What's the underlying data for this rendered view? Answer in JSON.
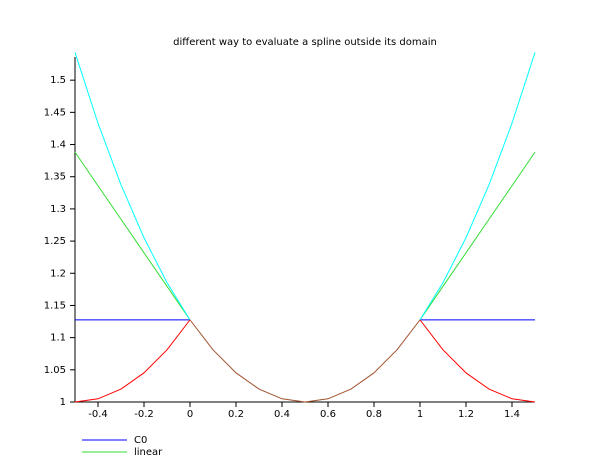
{
  "chart_data": {
    "type": "line",
    "title": "different way to evaluate a spline outside its domain",
    "x": [
      -0.5,
      -0.4,
      -0.3,
      -0.2,
      -0.1,
      0,
      0.1,
      0.2,
      0.3,
      0.4,
      0.5,
      0.6,
      0.7,
      0.8,
      0.9,
      1,
      1.1,
      1.2,
      1.3,
      1.4,
      1.5
    ],
    "xlim": [
      -0.5,
      1.5
    ],
    "xticks": [
      -0.4,
      -0.2,
      0,
      0.2,
      0.4,
      0.6,
      0.8,
      1,
      1.2,
      1.4
    ],
    "ylim": [
      1,
      1.536
    ],
    "yticks": [
      1,
      1.05,
      1.1,
      1.15,
      1.2,
      1.25,
      1.3,
      1.35,
      1.4,
      1.45,
      1.5
    ],
    "series": [
      {
        "name": "C0",
        "color": "#0000ff",
        "values": [
          1.1276,
          1.1276,
          1.1276,
          1.1276,
          1.1276,
          1.1276,
          null,
          null,
          null,
          null,
          null,
          null,
          null,
          null,
          null,
          1.1276,
          1.1276,
          1.1276,
          1.1276,
          1.1276,
          1.1276
        ]
      },
      {
        "name": "linear",
        "color": "#33dd33",
        "values": [
          1.3882,
          1.336,
          1.2839,
          1.2318,
          1.1797,
          1.1276,
          null,
          null,
          null,
          null,
          null,
          null,
          null,
          null,
          null,
          1.1276,
          1.1797,
          1.2318,
          1.2839,
          1.336,
          1.3882
        ]
      },
      {
        "color": "#00ffff",
        "values": [
          1.5431,
          1.4331,
          1.3374,
          1.2552,
          1.1855,
          1.1276,
          null,
          null,
          null,
          null,
          null,
          null,
          null,
          null,
          null,
          1.1276,
          1.1855,
          1.2552,
          1.3374,
          1.4331,
          1.5431
        ]
      },
      {
        "color": "#ff0000",
        "values": [
          1,
          1.005,
          1.0201,
          1.0453,
          1.0811,
          1.1276,
          null,
          null,
          null,
          null,
          null,
          null,
          null,
          null,
          null,
          1.1276,
          1.0811,
          1.0453,
          1.0201,
          1.005,
          1
        ]
      },
      {
        "color": "#a0522d",
        "values": [
          null,
          null,
          null,
          null,
          null,
          1.1276,
          1.0811,
          1.0453,
          1.0201,
          1.005,
          1,
          1.005,
          1.0201,
          1.0453,
          1.0811,
          1.1276,
          null,
          null,
          null,
          null,
          null
        ]
      }
    ]
  }
}
